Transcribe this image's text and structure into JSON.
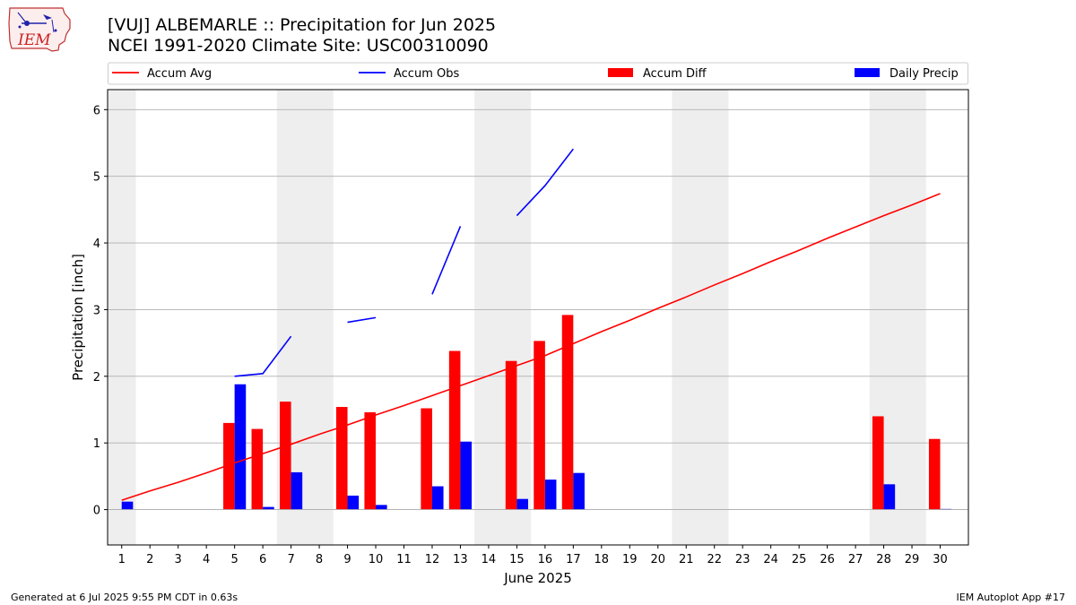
{
  "header": {
    "logo_text": "IEM",
    "title_line1": "[VUJ] ALBEMARLE :: Precipitation for Jun 2025",
    "title_line2": "NCEI 1991-2020 Climate Site: USC00310090"
  },
  "footer": {
    "left": "Generated at 6 Jul 2025 9:55 PM CDT in 0.63s",
    "right": "IEM Autoplot App #17"
  },
  "colors": {
    "avg": "#ff0000",
    "obs": "#0000ff",
    "diff": "#ff0000",
    "daily": "#0000ff",
    "weekend_shade": "#eeeeee",
    "grid": "#b0b0b0"
  },
  "chart_data": {
    "type": "bar",
    "xlabel": "June 2025",
    "ylabel": "Precipitation [inch]",
    "xlim": [
      0.5,
      31.0
    ],
    "ylim": [
      -0.53,
      6.3
    ],
    "yticks": [
      0,
      1,
      2,
      3,
      4,
      5,
      6
    ],
    "grid": "y",
    "legend_position": "top",
    "x": [
      1,
      2,
      3,
      4,
      5,
      6,
      7,
      8,
      9,
      10,
      11,
      12,
      13,
      14,
      15,
      16,
      17,
      18,
      19,
      20,
      21,
      22,
      23,
      24,
      25,
      26,
      27,
      28,
      29,
      30
    ],
    "shaded_days": [
      [
        0.5,
        1.5
      ],
      [
        6.5,
        8.5
      ],
      [
        13.5,
        15.5
      ],
      [
        20.5,
        22.5
      ],
      [
        27.5,
        29.5
      ]
    ],
    "series": [
      {
        "name": "Accum Avg",
        "kind": "line",
        "values": [
          0.14,
          0.28,
          0.41,
          0.55,
          0.7,
          0.84,
          0.98,
          1.13,
          1.27,
          1.42,
          1.56,
          1.71,
          1.86,
          2.01,
          2.16,
          2.31,
          2.49,
          2.67,
          2.84,
          3.02,
          3.19,
          3.37,
          3.54,
          3.72,
          3.89,
          4.07,
          4.24,
          4.41,
          4.57,
          4.74
        ]
      },
      {
        "name": "Accum Obs",
        "kind": "line",
        "values": [
          null,
          null,
          null,
          null,
          2.0,
          2.04,
          2.6,
          null,
          2.81,
          2.88,
          null,
          3.23,
          4.25,
          null,
          4.41,
          4.86,
          5.41,
          null,
          null,
          null,
          null,
          null,
          null,
          null,
          null,
          null,
          null,
          null,
          null,
          null
        ]
      },
      {
        "name": "Accum Diff",
        "kind": "bar",
        "values": [
          null,
          null,
          null,
          null,
          1.3,
          1.21,
          1.62,
          null,
          1.54,
          1.46,
          null,
          1.52,
          2.38,
          null,
          2.23,
          2.53,
          2.92,
          null,
          null,
          null,
          null,
          null,
          null,
          null,
          null,
          null,
          null,
          1.4,
          null,
          1.06
        ]
      },
      {
        "name": "Daily Precip",
        "kind": "bar",
        "values": [
          0.12,
          0,
          0,
          0,
          1.88,
          0.04,
          0.56,
          0,
          0.21,
          0.07,
          0,
          0.35,
          1.02,
          0,
          0.16,
          0.45,
          0.55,
          0,
          0,
          0,
          0,
          0,
          0,
          0,
          0,
          0,
          0,
          0.38,
          0,
          0.01
        ]
      }
    ]
  }
}
